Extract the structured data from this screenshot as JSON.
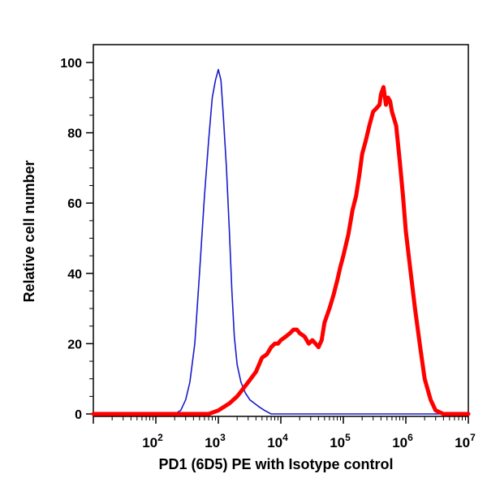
{
  "chart_data": {
    "type": "line",
    "title": "",
    "xlabel": "PD1 (6D5) PE with Isotype control",
    "ylabel": "Relative cell number",
    "x_scale": "log",
    "xlim": [
      10,
      10000000
    ],
    "ylim": [
      0,
      100
    ],
    "x_ticks": [
      {
        "value": 100,
        "base": "10",
        "exp": "2"
      },
      {
        "value": 1000,
        "base": "10",
        "exp": "3"
      },
      {
        "value": 10000,
        "base": "10",
        "exp": "4"
      },
      {
        "value": 100000,
        "base": "10",
        "exp": "5"
      },
      {
        "value": 1000000,
        "base": "10",
        "exp": "6"
      },
      {
        "value": 10000000,
        "base": "10",
        "exp": "7"
      }
    ],
    "y_ticks": [
      {
        "value": 0,
        "label": "0"
      },
      {
        "value": 20,
        "label": "20"
      },
      {
        "value": 40,
        "label": "40"
      },
      {
        "value": 60,
        "label": "60"
      },
      {
        "value": 80,
        "label": "80"
      },
      {
        "value": 100,
        "label": "100"
      }
    ],
    "grid": false,
    "legend": "none",
    "series": [
      {
        "color": "#1a1acc",
        "line_weight": "thin",
        "x": [
          10,
          200,
          250,
          300,
          350,
          420,
          500,
          600,
          700,
          800,
          900,
          1000,
          1100,
          1200,
          1350,
          1500,
          1650,
          1800,
          2000,
          2300,
          2700,
          3200,
          3800,
          4500,
          5500,
          7000,
          10000,
          100000,
          10000000
        ],
        "y": [
          0,
          0,
          1,
          4,
          9,
          20,
          40,
          62,
          78,
          90,
          95,
          98,
          95,
          85,
          70,
          52,
          35,
          22,
          14,
          9,
          6,
          4,
          3,
          2,
          1,
          0,
          0,
          0,
          0
        ]
      },
      {
        "color": "#ff0000",
        "line_weight": "thick",
        "x": [
          10,
          700,
          1000,
          1500,
          2000,
          3000,
          4000,
          5000,
          6000,
          7000,
          8000,
          9000,
          10000,
          12000,
          14000,
          16000,
          18000,
          20000,
          24000,
          28000,
          32000,
          36000,
          40000,
          45000,
          50000,
          60000,
          70000,
          80000,
          90000,
          100000,
          120000,
          140000,
          160000,
          180000,
          200000,
          230000,
          260000,
          300000,
          340000,
          380000,
          400000,
          440000,
          480000,
          520000,
          560000,
          600000,
          700000,
          800000,
          900000,
          1000000,
          1200000,
          1400000,
          1700000,
          2000000,
          2500000,
          3000000,
          4000000,
          10000000
        ],
        "y": [
          0,
          0,
          1,
          3,
          5,
          9,
          12,
          16,
          17,
          19,
          20,
          20,
          21,
          22,
          23,
          24,
          24,
          23,
          22,
          20,
          21,
          20,
          19,
          21,
          26,
          30,
          34,
          38,
          42,
          45,
          51,
          58,
          62,
          68,
          74,
          78,
          82,
          86,
          87,
          88,
          91,
          93,
          88,
          90,
          89,
          86,
          82,
          72,
          62,
          52,
          40,
          30,
          19,
          10,
          4,
          1,
          0,
          0
        ]
      }
    ]
  }
}
